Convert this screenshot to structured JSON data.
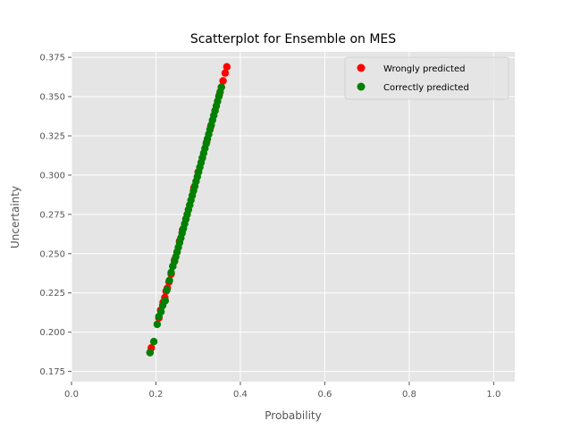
{
  "chart_data": {
    "type": "scatter",
    "title": "Scatterplot for Ensemble on MES",
    "xlabel": "Probability",
    "ylabel": "Uncertainty",
    "xlim": [
      0.0,
      1.05
    ],
    "ylim": [
      0.1685,
      0.3785
    ],
    "xticks": [
      0.0,
      0.2,
      0.4,
      0.6,
      0.8,
      1.0
    ],
    "xtick_labels": [
      "0.0",
      "0.2",
      "0.4",
      "0.6",
      "0.8",
      "1.0"
    ],
    "yticks": [
      0.175,
      0.2,
      0.225,
      0.25,
      0.275,
      0.3,
      0.325,
      0.35,
      0.375
    ],
    "ytick_labels": [
      "0.175",
      "0.200",
      "0.225",
      "0.250",
      "0.275",
      "0.300",
      "0.325",
      "0.350",
      "0.375"
    ],
    "grid": true,
    "legend_position": "top-right",
    "background": "#e5e5e5",
    "series": [
      {
        "name": "Wrongly predicted",
        "color": "#ff0000",
        "points": [
          [
            0.186,
            0.187
          ],
          [
            0.189,
            0.19
          ],
          [
            0.207,
            0.209
          ],
          [
            0.211,
            0.214
          ],
          [
            0.217,
            0.219
          ],
          [
            0.221,
            0.222
          ],
          [
            0.224,
            0.226
          ],
          [
            0.227,
            0.228
          ],
          [
            0.231,
            0.232
          ],
          [
            0.236,
            0.237
          ],
          [
            0.24,
            0.242
          ],
          [
            0.244,
            0.246
          ],
          [
            0.25,
            0.251
          ],
          [
            0.256,
            0.258
          ],
          [
            0.263,
            0.265
          ],
          [
            0.271,
            0.272
          ],
          [
            0.28,
            0.281
          ],
          [
            0.29,
            0.292
          ],
          [
            0.3,
            0.302
          ],
          [
            0.31,
            0.311
          ],
          [
            0.32,
            0.321
          ],
          [
            0.33,
            0.331
          ],
          [
            0.34,
            0.341
          ],
          [
            0.35,
            0.351
          ],
          [
            0.355,
            0.356
          ],
          [
            0.359,
            0.36
          ],
          [
            0.364,
            0.365
          ],
          [
            0.368,
            0.369
          ]
        ]
      },
      {
        "name": "Correctly predicted",
        "color": "#008000",
        "points": [
          [
            0.186,
            0.187
          ],
          [
            0.195,
            0.194
          ],
          [
            0.203,
            0.205
          ],
          [
            0.207,
            0.21
          ],
          [
            0.212,
            0.213
          ],
          [
            0.216,
            0.217
          ],
          [
            0.222,
            0.22
          ],
          [
            0.226,
            0.227
          ],
          [
            0.232,
            0.233
          ],
          [
            0.236,
            0.238
          ],
          [
            0.24,
            0.242
          ],
          [
            0.244,
            0.245
          ],
          [
            0.247,
            0.248
          ],
          [
            0.25,
            0.251
          ],
          [
            0.253,
            0.254
          ],
          [
            0.256,
            0.257
          ],
          [
            0.259,
            0.26
          ],
          [
            0.262,
            0.263
          ],
          [
            0.265,
            0.266
          ],
          [
            0.268,
            0.269
          ],
          [
            0.271,
            0.272
          ],
          [
            0.274,
            0.275
          ],
          [
            0.277,
            0.278
          ],
          [
            0.28,
            0.281
          ],
          [
            0.283,
            0.284
          ],
          [
            0.286,
            0.287
          ],
          [
            0.289,
            0.29
          ],
          [
            0.292,
            0.293
          ],
          [
            0.295,
            0.296
          ],
          [
            0.298,
            0.299
          ],
          [
            0.301,
            0.302
          ],
          [
            0.304,
            0.305
          ],
          [
            0.307,
            0.308
          ],
          [
            0.31,
            0.311
          ],
          [
            0.313,
            0.314
          ],
          [
            0.316,
            0.317
          ],
          [
            0.319,
            0.32
          ],
          [
            0.322,
            0.323
          ],
          [
            0.325,
            0.326
          ],
          [
            0.328,
            0.329
          ],
          [
            0.331,
            0.332
          ],
          [
            0.334,
            0.335
          ],
          [
            0.337,
            0.338
          ],
          [
            0.34,
            0.341
          ],
          [
            0.343,
            0.344
          ],
          [
            0.346,
            0.347
          ],
          [
            0.349,
            0.35
          ],
          [
            0.352,
            0.353
          ],
          [
            0.355,
            0.356
          ]
        ]
      }
    ]
  }
}
